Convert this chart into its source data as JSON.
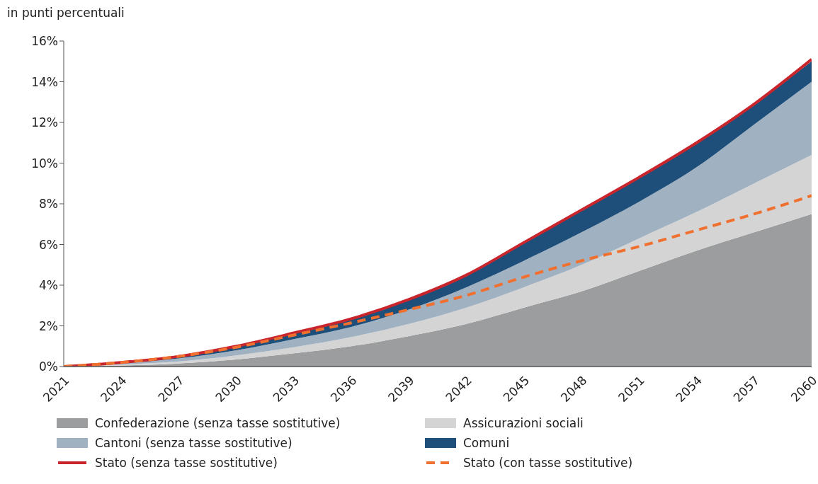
{
  "chart_data": {
    "type": "area",
    "stacked": true,
    "ylabel": "in punti percentuali",
    "x": [
      2021,
      2024,
      2027,
      2030,
      2033,
      2036,
      2039,
      2042,
      2045,
      2048,
      2051,
      2054,
      2057,
      2060
    ],
    "xlim": [
      2021,
      2060
    ],
    "xticks": [
      2021,
      2024,
      2027,
      2030,
      2033,
      2036,
      2039,
      2042,
      2045,
      2048,
      2051,
      2054,
      2057,
      2060
    ],
    "ylim": [
      0,
      16
    ],
    "yticks": [
      {
        "value": 0,
        "label": "0%"
      },
      {
        "value": 2,
        "label": "2%"
      },
      {
        "value": 4,
        "label": "4%"
      },
      {
        "value": 6,
        "label": "6%"
      },
      {
        "value": 8,
        "label": "8%"
      },
      {
        "value": 10,
        "label": "10%"
      },
      {
        "value": 12,
        "label": "12%"
      },
      {
        "value": 14,
        "label": "14%"
      },
      {
        "value": 16,
        "label": "16%"
      }
    ],
    "legend": "bottom",
    "series": [
      {
        "name": "Confederazione (senza tasse sostitutive)",
        "color": "#9b9d9e",
        "values": [
          0,
          0.05,
          0.15,
          0.35,
          0.65,
          1.0,
          1.5,
          2.1,
          2.9,
          3.7,
          4.7,
          5.7,
          6.6,
          7.5
        ]
      },
      {
        "name": "Assicurazioni sociali",
        "color": "#d4d4d4",
        "values": [
          0,
          0.05,
          0.1,
          0.2,
          0.3,
          0.45,
          0.6,
          0.8,
          1.0,
          1.3,
          1.6,
          1.9,
          2.4,
          2.9
        ]
      },
      {
        "name": "Cantoni (senza tasse sostitutive)",
        "color": "#a0b1c2",
        "values": [
          0,
          0.05,
          0.15,
          0.25,
          0.4,
          0.5,
          0.7,
          1.0,
          1.3,
          1.6,
          1.8,
          2.2,
          2.9,
          3.6
        ]
      },
      {
        "name": "Comuni",
        "color": "#1d4f7a",
        "values": [
          0,
          0.05,
          0.1,
          0.2,
          0.3,
          0.4,
          0.5,
          0.6,
          0.9,
          1.1,
          1.2,
          1.2,
          1.0,
          1.0
        ]
      },
      {
        "name": "Stato (senza tasse sostitutive)",
        "type": "line",
        "line_style": "solid",
        "color": "#c9252c",
        "values": [
          0,
          0.2,
          0.5,
          1.0,
          1.65,
          2.35,
          3.3,
          4.5,
          6.1,
          7.7,
          9.3,
          11.0,
          12.9,
          15.1
        ]
      },
      {
        "name": "Stato (con tasse sostitutive)",
        "type": "line",
        "line_style": "dashed",
        "color": "#f07030",
        "values": [
          0,
          0.2,
          0.5,
          0.95,
          1.55,
          2.15,
          2.8,
          3.5,
          4.4,
          5.2,
          5.9,
          6.7,
          7.5,
          8.4
        ]
      }
    ]
  }
}
